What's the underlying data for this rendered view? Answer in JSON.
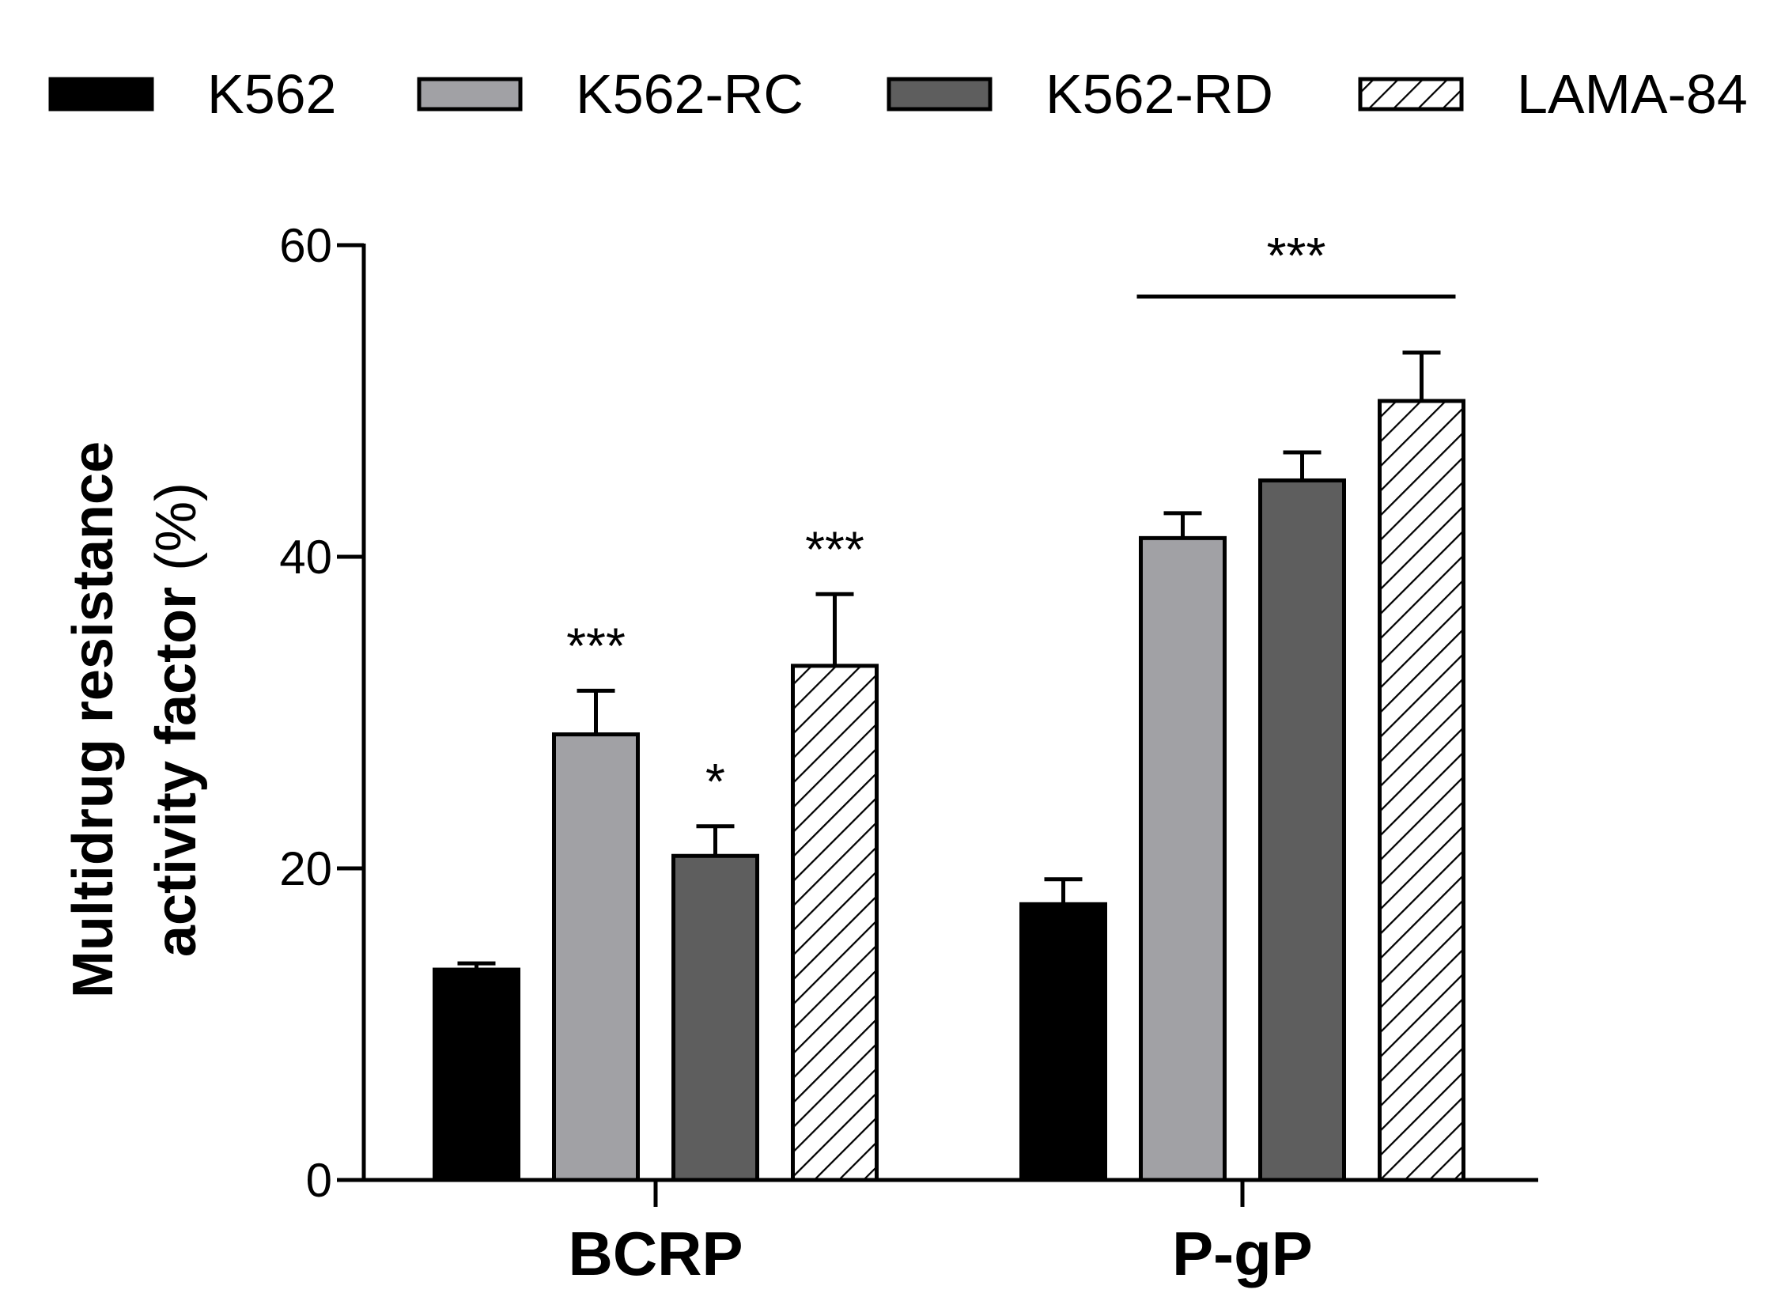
{
  "chart_data": {
    "type": "bar",
    "title": "",
    "xlabel": "",
    "ylabel": "Multidrug resistance activity factor (%)",
    "ylabel_lines": [
      "Multidrug resistance",
      "activity factor",
      "(%)"
    ],
    "ylim": [
      0,
      60
    ],
    "yticks": [
      0,
      20,
      40,
      60
    ],
    "grid": false,
    "legend_position": "top",
    "categories": [
      "BCRP",
      "P-gP"
    ],
    "series": [
      {
        "name": "K562",
        "values": [
          13.5,
          17.7
        ],
        "errors": [
          0.4,
          1.6
        ],
        "fill": "#000000",
        "pattern": "solid"
      },
      {
        "name": "K562-RC",
        "values": [
          28.6,
          41.2
        ],
        "errors": [
          2.8,
          1.6
        ],
        "fill": "#a1a1a5",
        "pattern": "solid"
      },
      {
        "name": "K562-RD",
        "values": [
          20.8,
          44.9
        ],
        "errors": [
          1.9,
          1.8
        ],
        "fill": "#5e5e5e",
        "pattern": "solid"
      },
      {
        "name": "LAMA-84",
        "values": [
          33.0,
          50.0
        ],
        "errors": [
          4.6,
          3.1
        ],
        "fill": "#ffffff",
        "pattern": "hatch"
      }
    ],
    "annotations": [
      {
        "category": 0,
        "series": 1,
        "text": "***"
      },
      {
        "category": 0,
        "series": 2,
        "text": "*"
      },
      {
        "category": 0,
        "series": 3,
        "text": "***"
      },
      {
        "category": 1,
        "series_span": [
          1,
          3
        ],
        "text": "***",
        "bracket_value": 56.7
      }
    ]
  },
  "colors": {
    "axis": "#000000",
    "bar_edge": "#000000"
  }
}
